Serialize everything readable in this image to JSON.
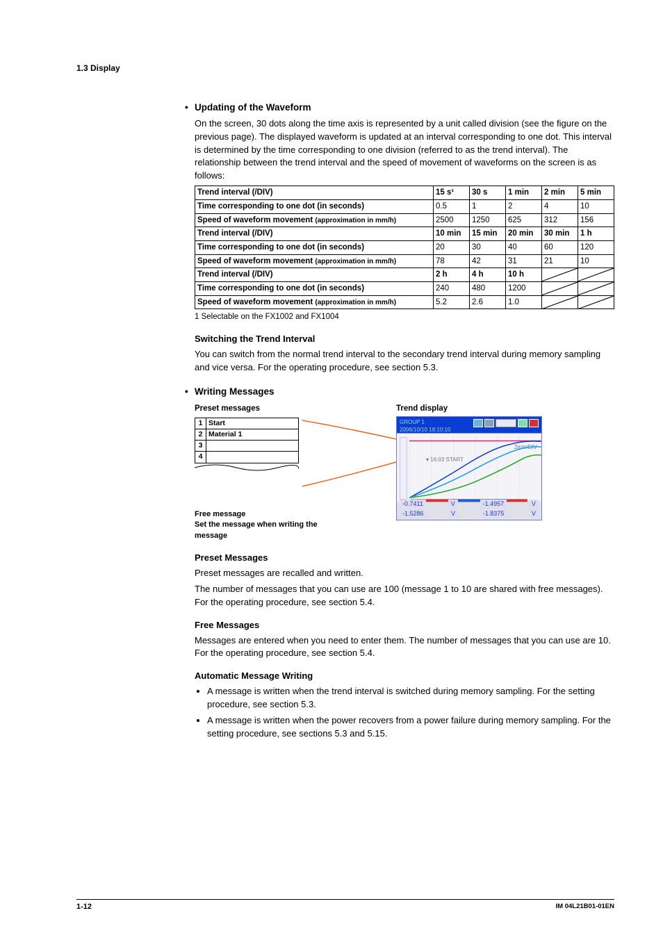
{
  "header": {
    "section": "1.3  Display"
  },
  "s1": {
    "title": "Updating of the Waveform",
    "para": "On the screen, 30 dots along the time axis is represented by a unit called division (see the figure on the previous page). The displayed waveform is updated at an interval corresponding to one dot. This interval is determined by the time corresponding to one division (referred to as the trend interval). The relationship between the trend interval and the speed of movement of waveforms on the screen is as follows:"
  },
  "table": {
    "rows": [
      {
        "label": "Trend interval (/DIV)",
        "sub": "",
        "vals": [
          "15 s¹",
          "30 s",
          "1 min",
          "2 min",
          "5 min"
        ]
      },
      {
        "label": "Time corresponding to one dot (in seconds)",
        "sub": "",
        "vals": [
          "0.5",
          "1",
          "2",
          "4",
          "10"
        ]
      },
      {
        "label": "Speed of waveform movement ",
        "sub": "(approximation in mm/h)",
        "vals": [
          "2500",
          "1250",
          "625",
          "312",
          "156"
        ]
      },
      {
        "label": "Trend interval (/DIV)",
        "sub": "",
        "vals": [
          "10 min",
          "15 min",
          "20 min",
          "30 min",
          "1 h"
        ]
      },
      {
        "label": "Time corresponding to one dot (in seconds)",
        "sub": "",
        "vals": [
          "20",
          "30",
          "40",
          "60",
          "120"
        ]
      },
      {
        "label": "Speed of waveform movement ",
        "sub": "(approximation in mm/h)",
        "vals": [
          "78",
          "42",
          "31",
          "21",
          "10"
        ]
      },
      {
        "label": "Trend interval (/DIV)",
        "sub": "",
        "vals": [
          "2 h",
          "4 h",
          "10 h",
          "",
          ""
        ]
      },
      {
        "label": "Time corresponding to one dot (in seconds)",
        "sub": "",
        "vals": [
          "240",
          "480",
          "1200",
          "",
          ""
        ]
      },
      {
        "label": "Speed of waveform movement ",
        "sub": "(approximation in mm/h)",
        "vals": [
          "5.2",
          "2.6",
          "1.0",
          "",
          ""
        ]
      }
    ],
    "diag_rows": [
      6,
      7,
      8
    ],
    "footnote": "1  Selectable on the FX1002 and FX1004"
  },
  "s2": {
    "title": "Switching the Trend Interval",
    "para": "You can switch from the normal trend interval to the secondary trend interval during memory sampling and vice versa. For the operating procedure, see section 5.3."
  },
  "s3": {
    "title": "Writing Messages",
    "preset_title": "Preset messages",
    "preset_rows": [
      {
        "n": "1",
        "txt": "Start"
      },
      {
        "n": "2",
        "txt": "Material 1"
      },
      {
        "n": "3",
        "txt": ""
      },
      {
        "n": "4",
        "txt": ""
      }
    ],
    "free_l1": "Free message",
    "free_l2": "Set the message when writing the message",
    "trend_title": "Trend display",
    "trend_top1": "GROUP 1",
    "trend_top2": "2006/10/10 18:10:10",
    "trend_rate": "2min/DIV",
    "trend_msg": "16:03 START",
    "bvals1": [
      "-0.7411",
      "V",
      "-1.4957",
      "V"
    ],
    "bvals2": [
      "-1.5286",
      "V",
      "-1.8375",
      "V"
    ]
  },
  "s4": {
    "title": "Preset Messages",
    "p1": "Preset messages are recalled and written.",
    "p2": "The number of messages that you can use are 100 (message 1 to 10 are shared with free messages). For the operating procedure, see section 5.4."
  },
  "s5": {
    "title": "Free Messages",
    "p1": "Messages are entered when you need to enter them. The number of messages that you can use are 10. For the operating procedure, see section 5.4."
  },
  "s6": {
    "title": "Automatic Message Writing",
    "items": [
      "A message is written when the trend interval is switched during memory sampling. For the setting procedure, see section 5.3.",
      "A message is written when the power recovers from a power failure during memory sampling. For the setting procedure, see sections 5.3 and 5.15."
    ]
  },
  "footer": {
    "page": "1-12",
    "doc": "IM 04L21B01-01EN"
  },
  "colors": {
    "arrow": "#e56b1f",
    "trend_blue": "#0a3dd1",
    "wave1": "#0a3dd1",
    "wave2": "#14a0ef",
    "wave3": "#e81f7a",
    "wave4": "#1fa81f"
  }
}
